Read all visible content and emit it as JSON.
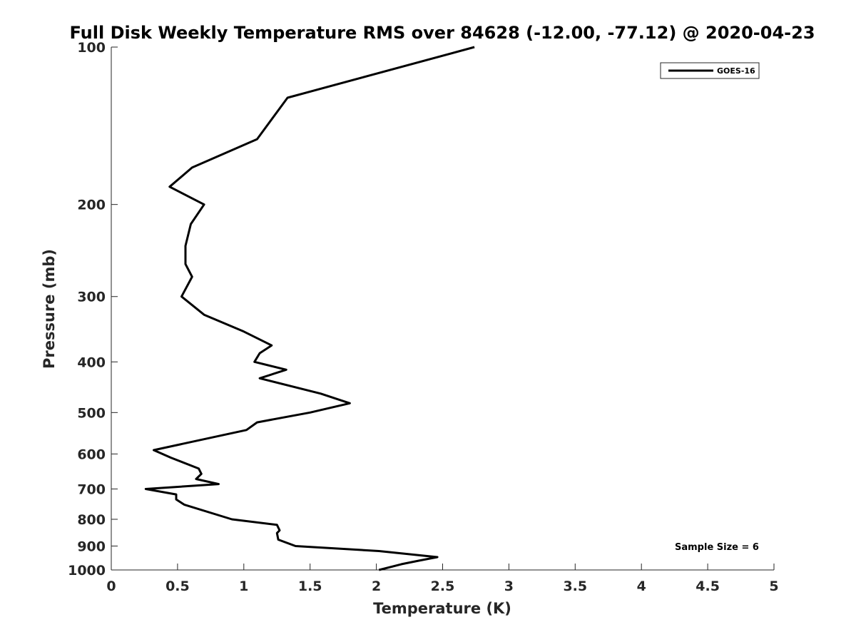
{
  "chart_data": {
    "type": "line",
    "title": "Full Disk Weekly Temperature RMS over 84628 (-12.00, -77.12) @ 2020-04-23",
    "xlabel": "Temperature (K)",
    "ylabel": "Pressure (mb)",
    "xlim": [
      0,
      5
    ],
    "ylim": [
      100,
      1000
    ],
    "y_scale": "log",
    "y_reversed": true,
    "grid": false,
    "legend_position": "top-right",
    "x_ticks": [
      "0",
      "0.5",
      "1",
      "1.5",
      "2",
      "2.5",
      "3",
      "3.5",
      "4",
      "4.5",
      "5"
    ],
    "x_tick_values": [
      0,
      0.5,
      1,
      1.5,
      2,
      2.5,
      3,
      3.5,
      4,
      4.5,
      5
    ],
    "y_ticks": [
      "100",
      "200",
      "300",
      "400",
      "500",
      "600",
      "700",
      "800",
      "900",
      "1000"
    ],
    "y_tick_values": [
      100,
      200,
      300,
      400,
      500,
      600,
      700,
      800,
      900,
      1000
    ],
    "series": [
      {
        "name": "GOES-16",
        "color": "#000000",
        "points": [
          [
            2.74,
            100
          ],
          [
            1.33,
            125
          ],
          [
            1.1,
            150
          ],
          [
            0.61,
            170
          ],
          [
            0.44,
            185
          ],
          [
            0.7,
            200
          ],
          [
            0.6,
            218
          ],
          [
            0.56,
            240
          ],
          [
            0.56,
            260
          ],
          [
            0.61,
            275
          ],
          [
            0.53,
            300
          ],
          [
            0.7,
            325
          ],
          [
            1.0,
            350
          ],
          [
            1.21,
            372
          ],
          [
            1.12,
            385
          ],
          [
            1.08,
            400
          ],
          [
            1.32,
            414
          ],
          [
            1.12,
            430
          ],
          [
            1.58,
            460
          ],
          [
            1.8,
            480
          ],
          [
            1.5,
            500
          ],
          [
            1.1,
            522
          ],
          [
            1.02,
            540
          ],
          [
            0.32,
            590
          ],
          [
            0.45,
            610
          ],
          [
            0.66,
            640
          ],
          [
            0.68,
            655
          ],
          [
            0.64,
            670
          ],
          [
            0.81,
            685
          ],
          [
            0.26,
            700
          ],
          [
            0.49,
            717
          ],
          [
            0.49,
            733
          ],
          [
            0.55,
            750
          ],
          [
            0.91,
            800
          ],
          [
            1.25,
            820
          ],
          [
            1.27,
            840
          ],
          [
            1.25,
            850
          ],
          [
            1.26,
            875
          ],
          [
            1.39,
            900
          ],
          [
            2.02,
            920
          ],
          [
            2.46,
            945
          ],
          [
            2.32,
            960
          ],
          [
            2.19,
            975
          ],
          [
            2.02,
            1000
          ]
        ]
      }
    ],
    "annotation": "Sample Size = 6"
  }
}
